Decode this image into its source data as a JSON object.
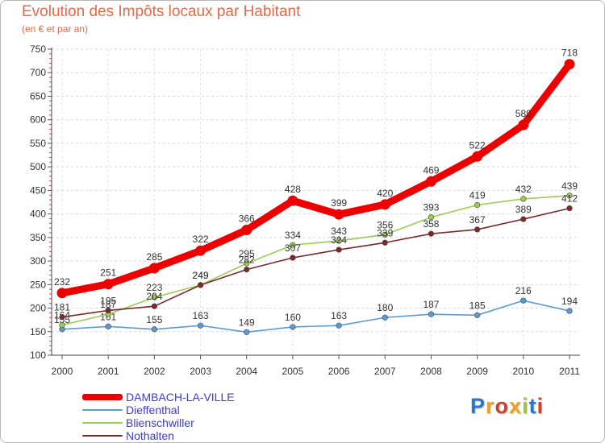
{
  "title": "Evolution des Impôts locaux par Habitant",
  "subtitle": "(en € et par an)",
  "logo": {
    "text": "Proxiti",
    "colors": [
      "#2a77c9",
      "#f0a020",
      "#d43d2a",
      "#f0a020",
      "#9bc53d",
      "#2a77c9",
      "#d43d2a"
    ]
  },
  "chart_data": {
    "type": "line",
    "x": [
      "2000",
      "2001",
      "2002",
      "2003",
      "2004",
      "2005",
      "2006",
      "2007",
      "2008",
      "2009",
      "2010",
      "2011"
    ],
    "ylim": [
      100,
      750
    ],
    "yticks": [
      "100",
      "150",
      "200",
      "250",
      "300",
      "350",
      "400",
      "450",
      "500",
      "550",
      "600",
      "650",
      "700",
      "750"
    ],
    "grid": "horizontal dashed",
    "legend_position": "bottom-left",
    "series": [
      {
        "name": "DAMBACH-LA-VILLE",
        "color": "#ee0000",
        "emphasis": "bold",
        "values": [
          232,
          251,
          285,
          322,
          366,
          428,
          399,
          420,
          469,
          522,
          589,
          718
        ],
        "labels": [
          "232",
          "251",
          "285",
          "322",
          "366",
          "428",
          "399",
          "420",
          "469",
          "522",
          "589",
          "718"
        ]
      },
      {
        "name": "Dieffenthal",
        "color": "#5b9bd5",
        "emphasis": "normal",
        "values": [
          155,
          161,
          155,
          163,
          149,
          160,
          163,
          180,
          187,
          185,
          216,
          194
        ],
        "labels": [
          "155",
          "161",
          "155",
          "163",
          "149",
          "160",
          "163",
          "180",
          "187",
          "185",
          "216",
          "194"
        ]
      },
      {
        "name": "Blienschwiller",
        "color": "#9acd55",
        "emphasis": "normal",
        "values": [
          164,
          187,
          223,
          249,
          295,
          334,
          343,
          356,
          393,
          419,
          432,
          439
        ],
        "labels": [
          "164",
          "187",
          "223",
          "249",
          "295",
          "334",
          "343",
          "356",
          "393",
          "419",
          "432",
          "439"
        ]
      },
      {
        "name": "Nothalten",
        "color": "#7a2a2a",
        "emphasis": "normal",
        "values": [
          181,
          195,
          204,
          249,
          282,
          307,
          324,
          339,
          358,
          367,
          389,
          412
        ],
        "labels": [
          "181",
          "195",
          "204",
          "249",
          "282",
          "307",
          "324",
          "339",
          "358",
          "367",
          "389",
          "412"
        ]
      }
    ]
  }
}
